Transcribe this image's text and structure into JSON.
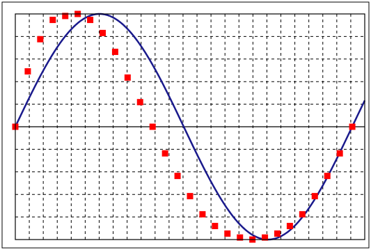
{
  "chart_data": {
    "type": "line",
    "title": "",
    "xlabel": "",
    "ylabel": "",
    "xlim": [
      0,
      1.0
    ],
    "ylim": [
      -1.0,
      1.0
    ],
    "grid": true,
    "grid_style": "dashed",
    "x_gridlines": 25,
    "y_gridlines": 10,
    "x": [
      0.0,
      0.0357,
      0.0714,
      0.1071,
      0.1429,
      0.1786,
      0.2143,
      0.25,
      0.2857,
      0.3214,
      0.3571,
      0.3929,
      0.4286,
      0.4643,
      0.5,
      0.5357,
      0.5714,
      0.6071,
      0.6429,
      0.6786,
      0.7143,
      0.75,
      0.7857,
      0.8214,
      0.8571,
      0.8929,
      0.9286,
      0.9643
    ],
    "series": [
      {
        "values": [
          0.0,
          0.491,
          0.776,
          0.947,
          0.982,
          1.0,
          0.947,
          0.831,
          0.664,
          0.436,
          0.218,
          0.0,
          -0.236,
          -0.436,
          -0.615,
          -0.776,
          -0.88,
          -0.947,
          -0.982,
          -1.0,
          -0.982,
          -0.947,
          -0.88,
          -0.776,
          -0.615,
          -0.436,
          -0.236,
          0.0
        ],
        "line_color": "#1a1a8c",
        "marker_color": "#ff0000"
      }
    ],
    "axis_color": "#000000",
    "grid_color": "#000000",
    "plot_background": "#ffffff"
  }
}
